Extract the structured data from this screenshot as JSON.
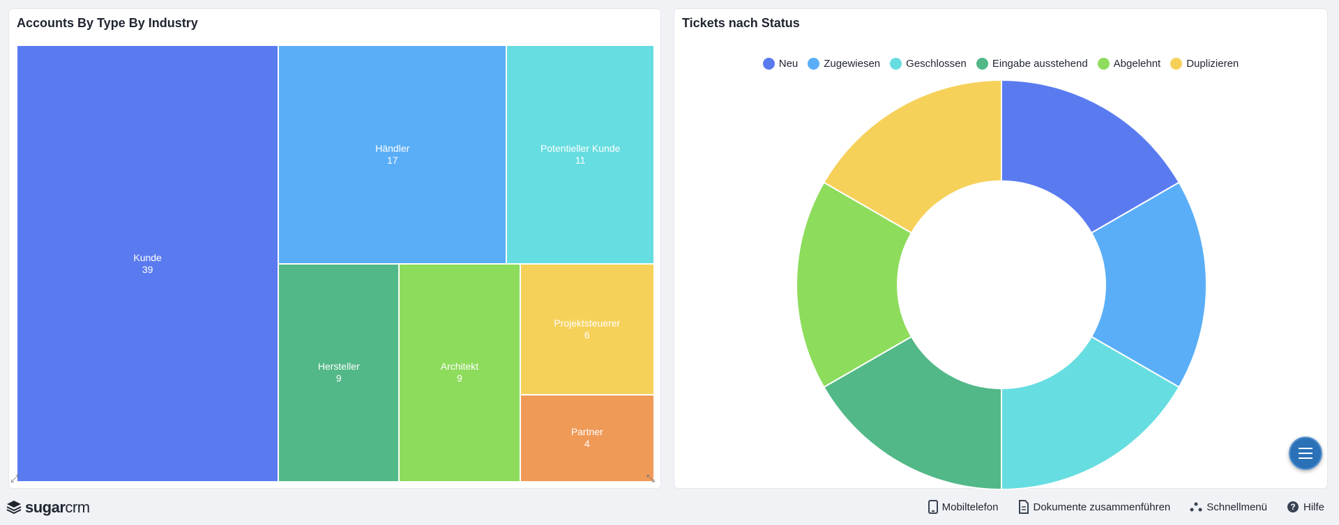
{
  "left_dashlet": {
    "title": "Accounts By Type By Industry",
    "chart_data": {
      "type": "treemap",
      "items": [
        {
          "label": "Kunde",
          "value": 39,
          "color": "#5a7bf0"
        },
        {
          "label": "Händler",
          "value": 17,
          "color": "#5aaef7"
        },
        {
          "label": "Potentieller Kunde",
          "value": 11,
          "color": "#66dde0"
        },
        {
          "label": "Hersteller",
          "value": 9,
          "color": "#52b887"
        },
        {
          "label": "Architekt",
          "value": 9,
          "color": "#8ddc5c"
        },
        {
          "label": "Projektsteuerer",
          "value": 6,
          "color": "#f6d15a"
        },
        {
          "label": "Partner",
          "value": 4,
          "color": "#f09a58"
        }
      ]
    }
  },
  "right_dashlet": {
    "title": "Tickets nach Status",
    "chart_data": {
      "type": "donut",
      "series": [
        {
          "name": "Neu",
          "value": 1,
          "color": "#5a7bf0"
        },
        {
          "name": "Zugewiesen",
          "value": 1,
          "color": "#5aaef7"
        },
        {
          "name": "Geschlossen",
          "value": 1,
          "color": "#66dde0"
        },
        {
          "name": "Eingabe ausstehend",
          "value": 1,
          "color": "#52b887"
        },
        {
          "name": "Abgelehnt",
          "value": 1,
          "color": "#8ddc5c"
        },
        {
          "name": "Duplizieren",
          "value": 1,
          "color": "#f6d15a"
        }
      ],
      "legend_position": "top-center"
    }
  },
  "footer": {
    "logo_sugar": "sugar",
    "logo_crm": "crm",
    "links": [
      {
        "label": "Mobiltelefon",
        "icon": "mobile-phone-icon"
      },
      {
        "label": "Dokumente zusammenführen",
        "icon": "document-icon"
      },
      {
        "label": "Schnellmenü",
        "icon": "quick-menu-icon"
      },
      {
        "label": "Hilfe",
        "icon": "help-icon"
      }
    ]
  },
  "fab": {
    "icon": "menu-icon"
  }
}
